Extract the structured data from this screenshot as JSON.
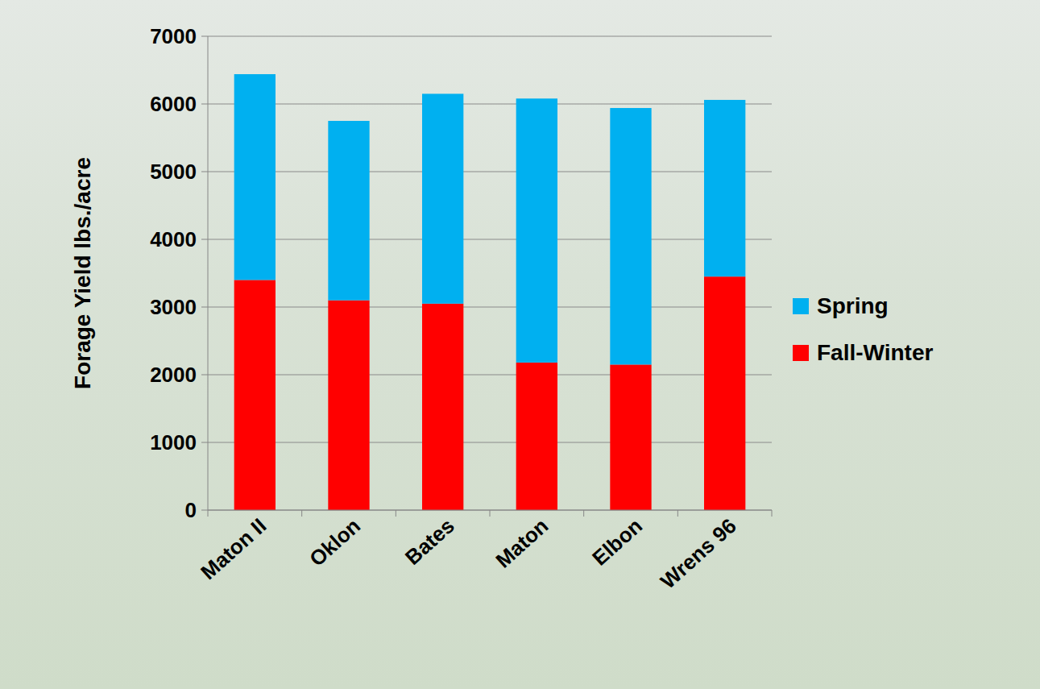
{
  "chart_data": {
    "type": "bar",
    "stacked": true,
    "y_label": "Forage Yield lbs./acre",
    "categories": [
      "Maton II",
      "Oklon",
      "Bates",
      "Maton",
      "Elbon",
      "Wrens 96"
    ],
    "series": [
      {
        "name": "Fall-Winter",
        "color": "#ff0000",
        "values": [
          3400,
          3100,
          3050,
          2180,
          2150,
          3450
        ]
      },
      {
        "name": "Spring",
        "color": "#00b0f0",
        "values": [
          3040,
          2650,
          3100,
          3900,
          3790,
          2610
        ]
      }
    ],
    "ylim": [
      0,
      7000
    ],
    "yticks": [
      0,
      1000,
      2000,
      3000,
      4000,
      5000,
      6000,
      7000
    ],
    "grid": true,
    "legend": "right"
  }
}
